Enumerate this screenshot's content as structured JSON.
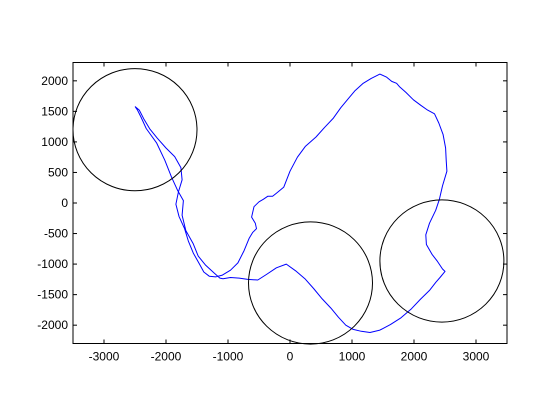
{
  "chart_data": {
    "type": "line",
    "title": "",
    "xlabel": "",
    "ylabel": "",
    "xlim": [
      -3500,
      3500
    ],
    "ylim": [
      -2300,
      2300
    ],
    "xticks": [
      -3000,
      -2000,
      -1000,
      0,
      1000,
      2000,
      3000
    ],
    "yticks": [
      2000,
      1500,
      1000,
      500,
      0,
      -500,
      -1000,
      -1500,
      -2000
    ],
    "grid": false,
    "legend": "none",
    "coast_color": "#0000ff",
    "circle_color": "#000000",
    "series": [
      {
        "type": "coastline",
        "x": [
          -2500,
          -2430,
          -2360,
          -2260,
          -2140,
          -2000,
          -1860,
          -1760,
          -1740,
          -1800,
          -1840,
          -1790,
          -1700,
          -1640,
          -1560,
          -1460,
          -1390,
          -1300,
          -1200,
          -1090,
          -960,
          -840,
          -740,
          -660,
          -600,
          -540,
          -560,
          -620,
          -580,
          -500,
          -430,
          -360,
          -280,
          -220,
          -100,
          0,
          120,
          250,
          420,
          560,
          700,
          820,
          950,
          1050,
          1180,
          1310,
          1450,
          1560,
          1640,
          1720,
          1770,
          1870,
          1990,
          2110,
          2220,
          2330,
          2400,
          2470,
          2510,
          2520,
          2530,
          2460,
          2410,
          2350,
          2250,
          2190,
          2200,
          2290,
          2380,
          2460,
          2500,
          2420,
          2350,
          2250,
          2100,
          1960,
          1790,
          1620,
          1450,
          1290,
          1150,
          1020,
          900,
          780,
          660,
          520,
          380,
          240,
          90,
          -60,
          -220,
          -380,
          -520,
          -680,
          -820,
          -960,
          -1080,
          -1130,
          -1220,
          -1360,
          -1480,
          -1560,
          -1680,
          -1740,
          -1720,
          -1810,
          -1910,
          -2020,
          -2150,
          -2320,
          -2400,
          -2460,
          -2500
        ],
        "y": [
          1580,
          1520,
          1380,
          1210,
          1060,
          900,
          760,
          580,
          380,
          180,
          -20,
          -220,
          -420,
          -620,
          -820,
          -1000,
          -1130,
          -1200,
          -1210,
          -1180,
          -1100,
          -980,
          -780,
          -580,
          -480,
          -420,
          -330,
          -230,
          -60,
          20,
          60,
          110,
          110,
          160,
          260,
          520,
          750,
          930,
          1080,
          1240,
          1390,
          1560,
          1720,
          1840,
          1960,
          2040,
          2110,
          2060,
          1990,
          1960,
          1900,
          1810,
          1690,
          1600,
          1520,
          1460,
          1310,
          1120,
          900,
          700,
          520,
          280,
          60,
          -120,
          -330,
          -520,
          -680,
          -840,
          -960,
          -1080,
          -1120,
          -1220,
          -1300,
          -1430,
          -1580,
          -1730,
          -1880,
          -1990,
          -2080,
          -2120,
          -2100,
          -2070,
          -2000,
          -1870,
          -1720,
          -1570,
          -1400,
          -1240,
          -1110,
          -1000,
          -1060,
          -1170,
          -1260,
          -1250,
          -1230,
          -1220,
          -1240,
          -1230,
          -1150,
          -1020,
          -870,
          -670,
          -450,
          -200,
          40,
          200,
          420,
          700,
          980,
          1220,
          1400,
          1520,
          1580
        ]
      }
    ],
    "circles": [
      {
        "cx": -2500,
        "cy": 1200,
        "r": 1000
      },
      {
        "cx": 330,
        "cy": -1310,
        "r": 1000
      },
      {
        "cx": 2450,
        "cy": -950,
        "r": 1000
      }
    ]
  }
}
